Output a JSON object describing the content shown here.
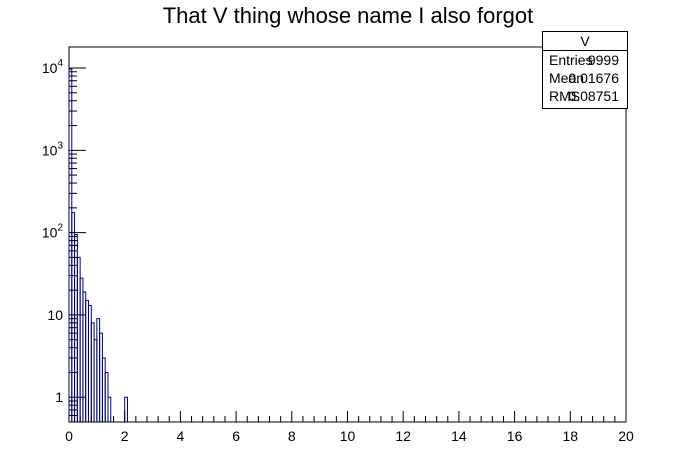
{
  "chart_data": {
    "type": "histogram",
    "title": "That V thing whose name I also forgot",
    "xlabel": "",
    "ylabel": "",
    "xlim": [
      0,
      20
    ],
    "ylim": [
      0.5,
      18000
    ],
    "y_scale": "log",
    "grid": false,
    "bin_width": 0.1,
    "x_ticks": [
      "0",
      "2",
      "4",
      "6",
      "8",
      "10",
      "12",
      "14",
      "16",
      "18",
      "20"
    ],
    "y_ticks": [
      {
        "value": 1,
        "base": "1",
        "exp": ""
      },
      {
        "value": 10,
        "base": "10",
        "exp": ""
      },
      {
        "value": 100,
        "base": "10",
        "exp": "2"
      },
      {
        "value": 1000,
        "base": "10",
        "exp": "3"
      },
      {
        "value": 10000,
        "base": "10",
        "exp": "4"
      }
    ],
    "series": [
      {
        "line_color": "#000080",
        "bins": [
          {
            "x0": 0.0,
            "x1": 0.1,
            "y": 9700
          },
          {
            "x0": 0.1,
            "x1": 0.2,
            "y": 175
          },
          {
            "x0": 0.2,
            "x1": 0.3,
            "y": 95
          },
          {
            "x0": 0.3,
            "x1": 0.4,
            "y": 50
          },
          {
            "x0": 0.4,
            "x1": 0.5,
            "y": 28
          },
          {
            "x0": 0.5,
            "x1": 0.6,
            "y": 19
          },
          {
            "x0": 0.6,
            "x1": 0.7,
            "y": 15
          },
          {
            "x0": 0.7,
            "x1": 0.8,
            "y": 13
          },
          {
            "x0": 0.8,
            "x1": 0.9,
            "y": 8
          },
          {
            "x0": 0.9,
            "x1": 1.0,
            "y": 5
          },
          {
            "x0": 1.0,
            "x1": 1.1,
            "y": 9
          },
          {
            "x0": 1.1,
            "x1": 1.2,
            "y": 6
          },
          {
            "x0": 1.2,
            "x1": 1.3,
            "y": 3
          },
          {
            "x0": 1.3,
            "x1": 1.4,
            "y": 2
          },
          {
            "x0": 1.4,
            "x1": 1.5,
            "y": 1
          },
          {
            "x0": 1.5,
            "x1": 2.0,
            "y": 0
          },
          {
            "x0": 2.0,
            "x1": 2.1,
            "y": 1
          }
        ]
      }
    ],
    "stats": {
      "title": "V",
      "rows": [
        {
          "label": "Entries",
          "value": "9999"
        },
        {
          "label": "Mean",
          "value": "0.01676"
        },
        {
          "label": "RMS",
          "value": "0.08751"
        }
      ]
    }
  }
}
